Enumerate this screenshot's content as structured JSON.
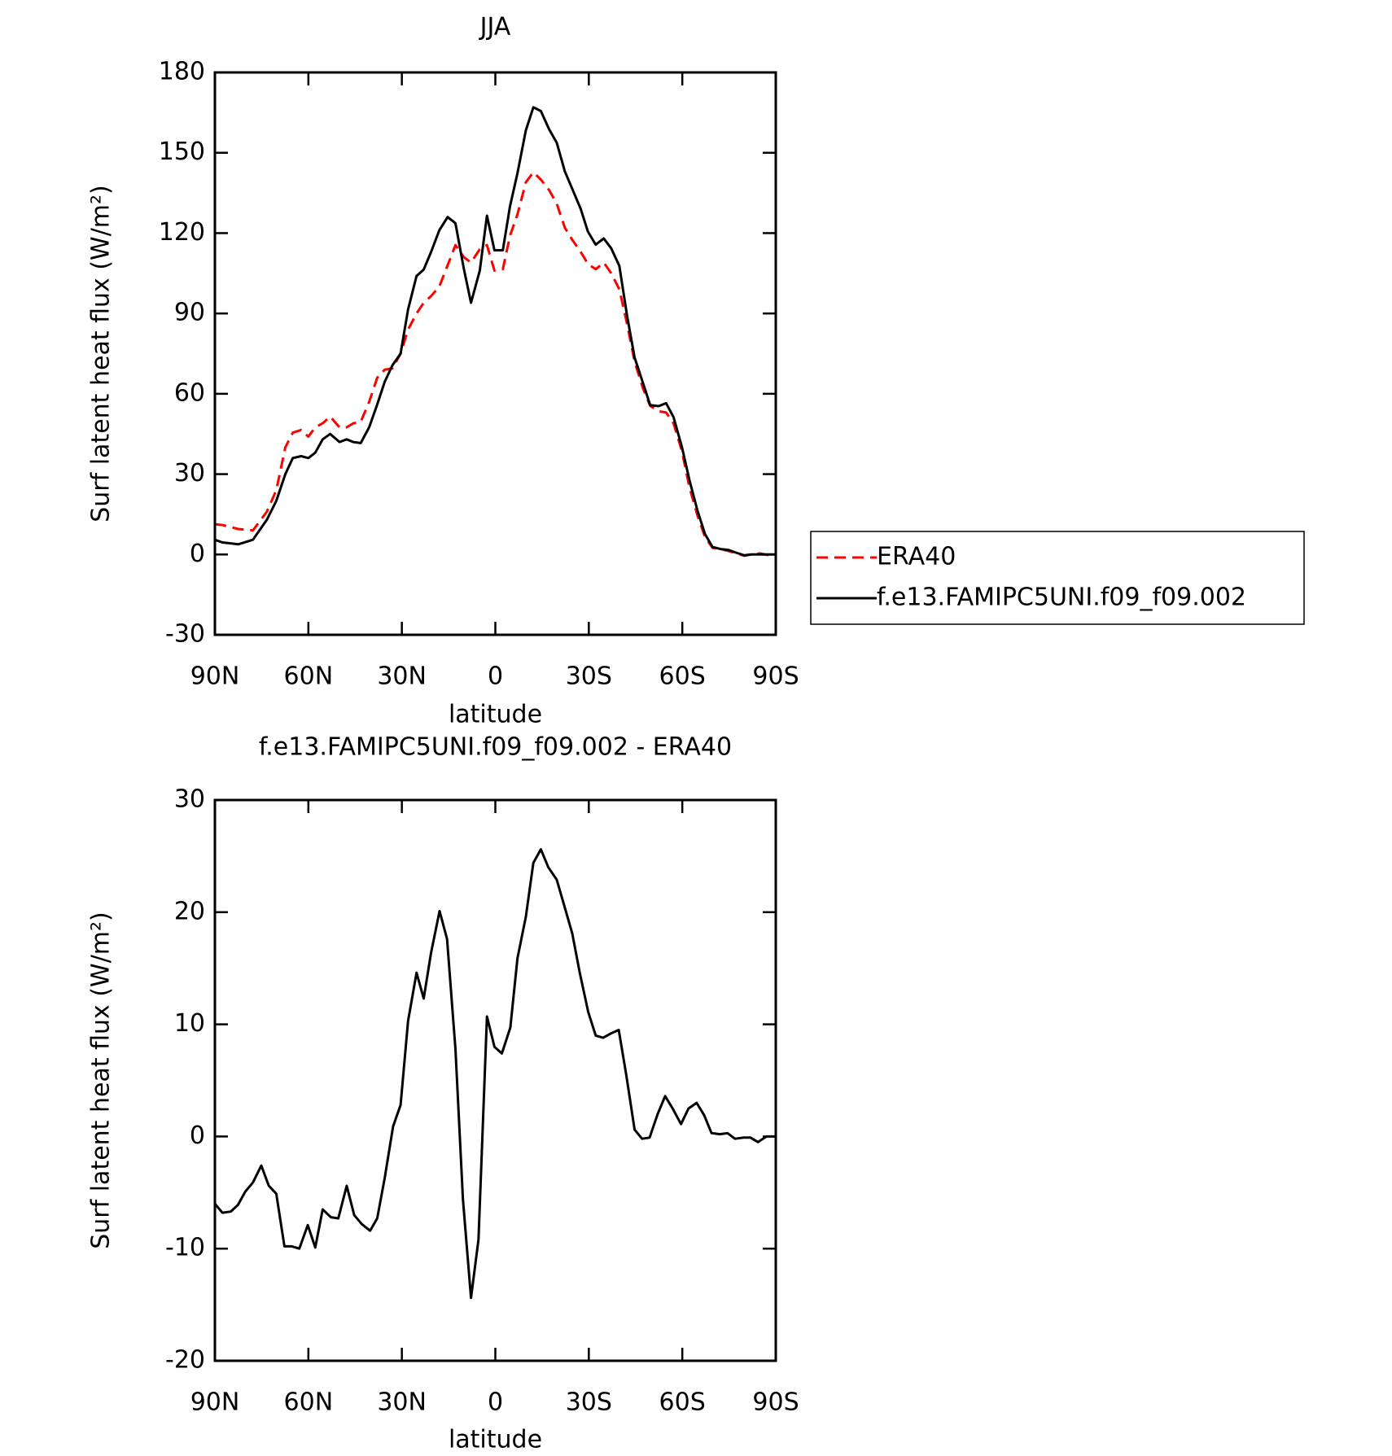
{
  "chart_data": [
    {
      "type": "line",
      "title": "JJA",
      "x_label": "latitude",
      "y_label": "Surf latent heat flux (W/m²)",
      "x": [
        90,
        87.6,
        82.5,
        77.8,
        73.3,
        70.3,
        67.4,
        65,
        62.3,
        60,
        57.8,
        55.4,
        53,
        50,
        47.7,
        45.6,
        43.2,
        40.5,
        37.9,
        35.5,
        33,
        30.4,
        28,
        25.3,
        23,
        20.6,
        18,
        15.3,
        12.8,
        10.1,
        7.8,
        5,
        2.7,
        0.3,
        -2.4,
        -4.7,
        -7.1,
        -9.8,
        -12.2,
        -14.6,
        -17.3,
        -19.7,
        -22.3,
        -24.7,
        -27.4,
        -29.7,
        -32.2,
        -34.8,
        -37.2,
        -39.8,
        -42.3,
        -44.7,
        -47.4,
        -49.7,
        -52.4,
        -54.8,
        -57.2,
        -59.9,
        -62.3,
        -64.9,
        -67.3,
        -69.7,
        -72.4,
        -74.8,
        -77.2,
        -79.9,
        -82.2,
        -84.9,
        -87.3,
        -90
      ],
      "series": [
        {
          "name": "ERA40",
          "color": "#ff0000",
          "linestyle": "dashed",
          "values": [
            11.3,
            11,
            9.5,
            9,
            16,
            24,
            40,
            45.5,
            46.5,
            44,
            47.5,
            49,
            51.5,
            47.5,
            47.5,
            49,
            49.5,
            57,
            66,
            69,
            69.5,
            75,
            84,
            90,
            94,
            96.5,
            100,
            108,
            115.5,
            111,
            109,
            114,
            115.5,
            106,
            106.5,
            119,
            127,
            139,
            142.7,
            140,
            136,
            131,
            122,
            117.5,
            113,
            108.5,
            106.5,
            109,
            105,
            99,
            86,
            72,
            62,
            55.5,
            53.5,
            53,
            49,
            38.5,
            25,
            14.5,
            6.5,
            2.5,
            2,
            1.3,
            0.5,
            -0.5,
            0,
            0.4,
            -0.2,
            0
          ]
        },
        {
          "name": "f.e13.FAMIPC5UNI.f09_f09.002",
          "color": "#000000",
          "linestyle": "solid",
          "values": [
            5.5,
            4.5,
            3.8,
            5.5,
            13,
            20,
            30,
            36,
            36.7,
            36,
            38,
            43,
            45,
            42,
            43,
            42,
            41.6,
            47.5,
            56,
            64.5,
            70.7,
            75,
            91.5,
            104,
            106.4,
            113,
            121,
            126,
            123.7,
            106.7,
            94,
            106,
            126.5,
            113.6,
            113.6,
            130,
            142.4,
            158.4,
            167,
            165.6,
            158.7,
            153.8,
            143,
            136.5,
            129,
            120.6,
            115.7,
            118,
            114.3,
            107.8,
            89,
            73.5,
            64,
            55.8,
            55.4,
            56.5,
            51.3,
            40,
            27.7,
            16.3,
            7.6,
            2.8,
            2,
            1.7,
            0.7,
            -0.3,
            0,
            0,
            0,
            0
          ]
        }
      ],
      "xlim": [
        90,
        -90
      ],
      "xticks": [
        {
          "value": 90,
          "label": "90N"
        },
        {
          "value": 60,
          "label": "60N"
        },
        {
          "value": 30,
          "label": "30N"
        },
        0,
        {
          "value": -30,
          "label": "30S"
        },
        {
          "value": -60,
          "label": "60S"
        },
        {
          "value": -90,
          "label": "90S"
        }
      ],
      "ylim": [
        -30,
        180
      ],
      "yticks": [
        -30,
        0,
        30,
        60,
        90,
        120,
        150,
        180
      ],
      "legend": "right"
    },
    {
      "type": "line",
      "title": "f.e13.FAMIPC5UNI.f09_f09.002 - ERA40",
      "x_label": "latitude",
      "y_label": "Surf latent heat flux (W/m²)",
      "x": [
        90,
        87.6,
        84.9,
        82.6,
        80.2,
        77.8,
        75.1,
        72.7,
        70.3,
        67.7,
        65.3,
        62.9,
        60.2,
        57.8,
        55.4,
        52.8,
        50.4,
        47.7,
        45.3,
        42.9,
        40.2,
        37.9,
        35.5,
        32.8,
        30.4,
        28,
        25.3,
        23,
        20.6,
        17.9,
        15.5,
        12.8,
        10.4,
        7.8,
        5.4,
        2.7,
        0.3,
        -2.1,
        -4.8,
        -7.1,
        -9.8,
        -12.2,
        -14.6,
        -17,
        -19.7,
        -22,
        -24.7,
        -27.1,
        -29.8,
        -32.2,
        -34.6,
        -37.2,
        -39.6,
        -42,
        -44.7,
        -47.1,
        -49.5,
        -52.1,
        -54.5,
        -56.9,
        -59.6,
        -62,
        -64.6,
        -67,
        -69.4,
        -72.1,
        -74.5,
        -76.9,
        -79.6,
        -81.9,
        -84.3,
        -87,
        -90
      ],
      "values": [
        -6,
        -6.8,
        -6.7,
        -6.1,
        -4.9,
        -4.1,
        -2.6,
        -4.4,
        -5.1,
        -9.8,
        -9.8,
        -10,
        -7.9,
        -9.9,
        -6.5,
        -7.2,
        -7.3,
        -4.4,
        -7,
        -7.8,
        -8.4,
        -7.3,
        -3.7,
        0.9,
        2.8,
        10.3,
        14.6,
        12.3,
        16.4,
        20.1,
        17.6,
        7.8,
        -5.6,
        -14.4,
        -9.2,
        10.7,
        8,
        7.4,
        9.7,
        15.9,
        19.6,
        24.4,
        25.6,
        24,
        22.9,
        20.7,
        18.1,
        14.6,
        11.1,
        9,
        8.8,
        9.2,
        9.5,
        5.5,
        0.6,
        -0.2,
        -0.1,
        2,
        3.6,
        2.5,
        1.1,
        2.5,
        3,
        1.9,
        0.3,
        0.2,
        0.3,
        -0.2,
        -0.1,
        -0.1,
        -0.5,
        0,
        0
      ],
      "color": "#000000",
      "xlim": [
        90,
        -90
      ],
      "xticks": [
        {
          "value": 90,
          "label": "90N"
        },
        {
          "value": 60,
          "label": "60N"
        },
        {
          "value": 30,
          "label": "30N"
        },
        0,
        {
          "value": -30,
          "label": "30S"
        },
        {
          "value": -60,
          "label": "60S"
        },
        {
          "value": -90,
          "label": "90S"
        }
      ],
      "ylim": [
        -20,
        30
      ],
      "yticks": [
        -20,
        -10,
        0,
        10,
        20,
        30
      ]
    }
  ]
}
